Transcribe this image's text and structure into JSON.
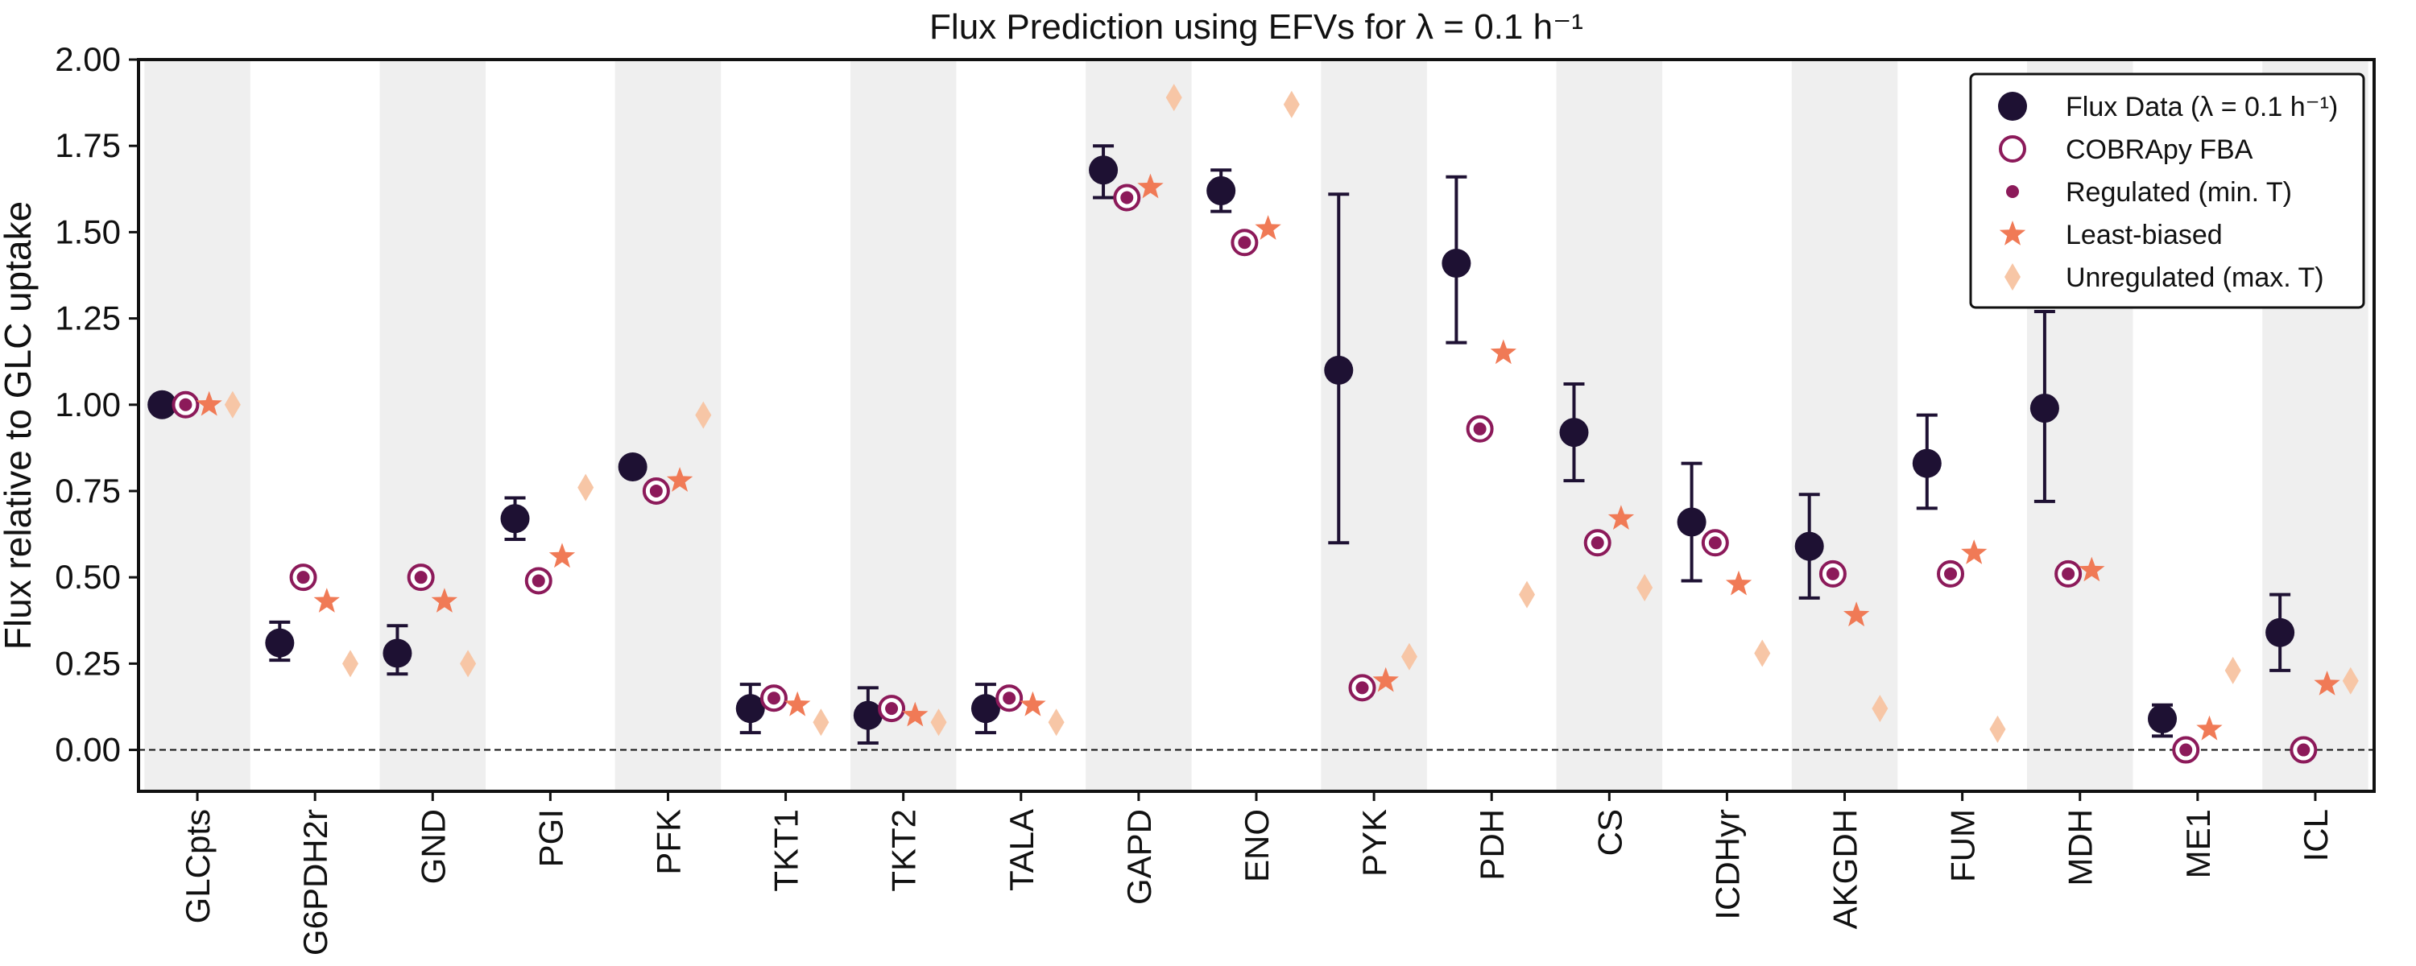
{
  "chart_data": {
    "type": "scatter",
    "title": "Flux Prediction using EFVs for λ = 0.1 h⁻¹",
    "ylabel": "Flux relative to GLC uptake",
    "xlabel": "",
    "ylim": [
      -0.12,
      2.0
    ],
    "yticks": [
      0.0,
      0.25,
      0.5,
      0.75,
      1.0,
      1.25,
      1.5,
      1.75,
      2.0
    ],
    "ytick_labels": [
      "0.00",
      "0.25",
      "0.50",
      "0.75",
      "1.00",
      "1.25",
      "1.50",
      "1.75",
      "2.00"
    ],
    "reference_line_y": 0.0,
    "grid": false,
    "alternating_band_color": "#efefef",
    "legend_position": "top-right",
    "categories": [
      "GLCpts",
      "G6PDH2r",
      "GND",
      "PGI",
      "PFK",
      "TKT1",
      "TKT2",
      "TALA",
      "GAPD",
      "ENO",
      "PYK",
      "PDH",
      "CS",
      "ICDHyr",
      "AKGDH",
      "FUM",
      "MDH",
      "ME1",
      "ICL"
    ],
    "series": [
      {
        "name": "Flux Data (λ = 0.1 h⁻¹)",
        "marker": "filled-circle",
        "color": "#1e1133",
        "values": [
          1.0,
          0.31,
          0.28,
          0.67,
          0.82,
          0.12,
          0.1,
          0.12,
          1.68,
          1.62,
          1.1,
          1.41,
          0.92,
          0.66,
          0.59,
          0.83,
          0.99,
          0.09,
          0.34
        ],
        "err_low": [
          null,
          0.26,
          0.22,
          0.61,
          null,
          0.05,
          0.02,
          0.05,
          1.6,
          1.56,
          0.6,
          1.18,
          0.78,
          0.49,
          0.44,
          0.7,
          0.72,
          0.04,
          0.23
        ],
        "err_high": [
          null,
          0.37,
          0.36,
          0.73,
          null,
          0.19,
          0.18,
          0.19,
          1.75,
          1.68,
          1.61,
          1.66,
          1.06,
          0.83,
          0.74,
          0.97,
          1.27,
          0.13,
          0.45
        ]
      },
      {
        "name": "COBRApy FBA",
        "marker": "open-circle",
        "color": "#8c1a5a",
        "values": [
          1.0,
          0.5,
          0.5,
          0.49,
          0.75,
          0.15,
          0.12,
          0.15,
          1.6,
          1.47,
          0.18,
          0.93,
          0.6,
          0.6,
          0.51,
          0.51,
          0.51,
          0.0,
          0.0
        ]
      },
      {
        "name": "Regulated (min. T)",
        "marker": "small-dot",
        "color": "#8c1a5a",
        "values": [
          1.0,
          0.5,
          0.5,
          0.49,
          0.75,
          0.15,
          0.12,
          0.15,
          1.6,
          1.47,
          0.18,
          0.93,
          0.6,
          0.6,
          0.51,
          0.51,
          0.51,
          0.0,
          0.0
        ]
      },
      {
        "name": "Least-biased",
        "marker": "star",
        "color": "#f07a56",
        "values": [
          1.0,
          0.43,
          0.43,
          0.56,
          0.78,
          0.13,
          0.1,
          0.13,
          1.63,
          1.51,
          0.2,
          1.15,
          0.67,
          0.48,
          0.39,
          0.57,
          0.52,
          0.06,
          0.19
        ]
      },
      {
        "name": "Unregulated (max. T)",
        "marker": "diamond",
        "color": "#f7c6a6",
        "values": [
          1.0,
          0.25,
          0.25,
          0.76,
          0.97,
          0.08,
          0.08,
          0.08,
          1.89,
          1.87,
          0.27,
          0.45,
          0.47,
          0.28,
          0.12,
          0.06,
          null,
          0.23,
          0.2
        ]
      }
    ]
  }
}
